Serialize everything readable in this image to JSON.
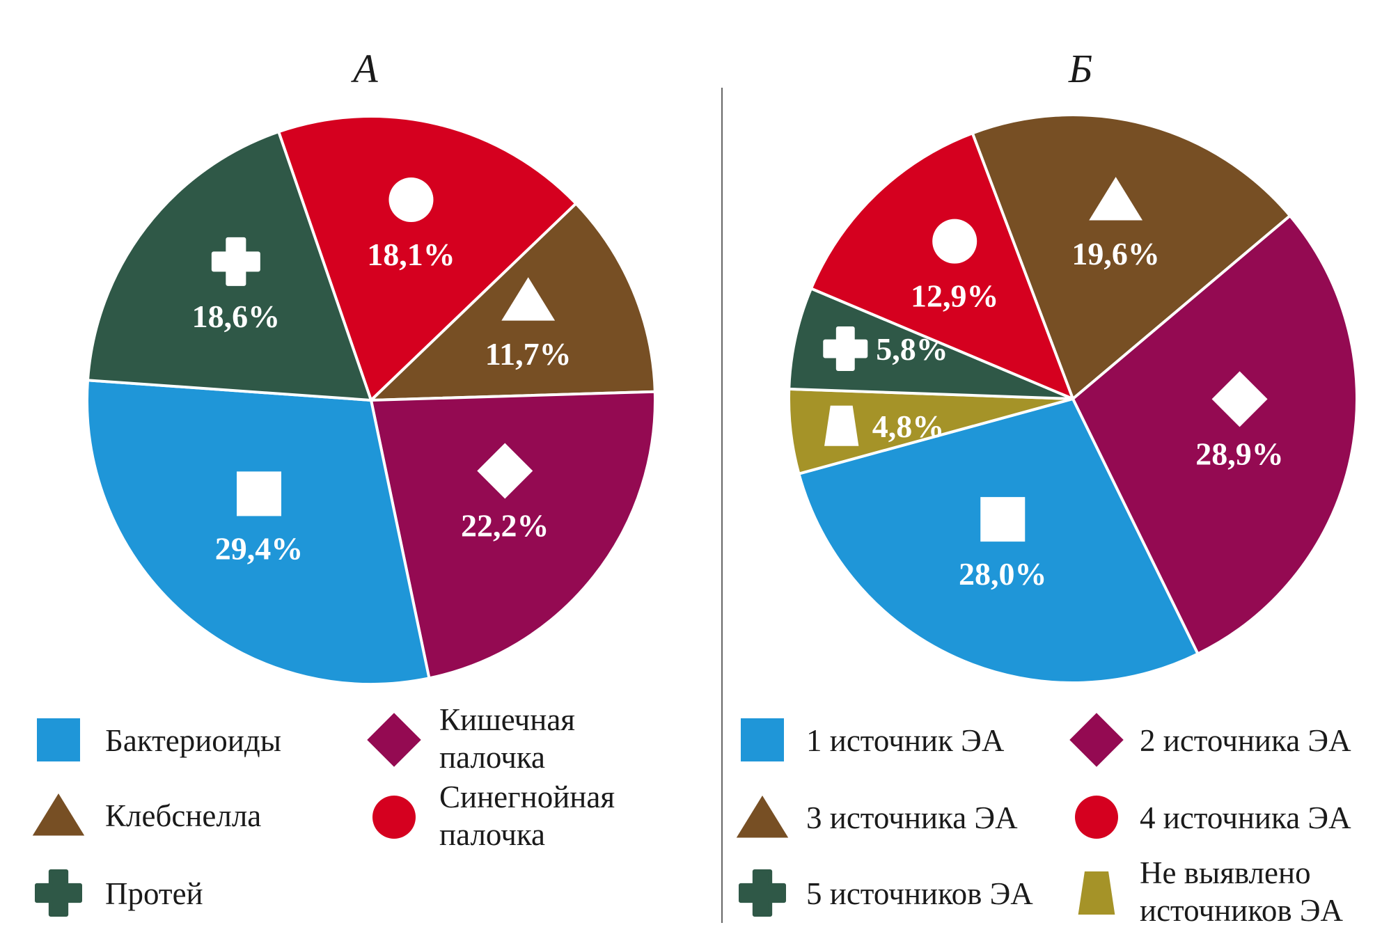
{
  "chart_data": [
    {
      "type": "pie",
      "title": "А",
      "slices": [
        {
          "label": "Синегнойная палочка",
          "legend_lines": [
            "Синегнойная",
            "палочка"
          ],
          "value": 18.1,
          "value_label": "18,1%",
          "color": "#d5001f",
          "icon": "circle"
        },
        {
          "label": "Клебснелла",
          "legend_lines": [
            "Клебснелла"
          ],
          "value": 11.7,
          "value_label": "11,7%",
          "color": "#774f24",
          "icon": "triangle"
        },
        {
          "label": "Кишечная палочка",
          "legend_lines": [
            "Кишечная",
            "палочка"
          ],
          "value": 22.2,
          "value_label": "22,2%",
          "color": "#940a52",
          "icon": "diamond"
        },
        {
          "label": "Бактериоиды",
          "legend_lines": [
            "Бактериоиды"
          ],
          "value": 29.4,
          "value_label": "29,4%",
          "color": "#1f96d8",
          "icon": "square"
        },
        {
          "label": "Протей",
          "legend_lines": [
            "Протей"
          ],
          "value": 18.6,
          "value_label": "18,6%",
          "color": "#2f5847",
          "icon": "cross"
        }
      ],
      "legend_order": [
        3,
        2,
        1,
        0,
        4
      ]
    },
    {
      "type": "pie",
      "title": "Б",
      "slices": [
        {
          "label": "3 источника ЭА",
          "legend_lines": [
            "3 источника ЭА"
          ],
          "value": 19.6,
          "value_label": "19,6%",
          "color": "#774f24",
          "icon": "triangle"
        },
        {
          "label": "2 источника ЭА",
          "legend_lines": [
            "2 источника ЭА"
          ],
          "value": 28.9,
          "value_label": "28,9%",
          "color": "#940a52",
          "icon": "diamond"
        },
        {
          "label": "1 источник ЭА",
          "legend_lines": [
            "1 источник ЭА"
          ],
          "value": 28.0,
          "value_label": "28,0%",
          "color": "#1f96d8",
          "icon": "square"
        },
        {
          "label": "Не выявлено источников ЭА",
          "legend_lines": [
            "Не выявлено",
            "источников ЭА"
          ],
          "value": 4.8,
          "value_label": "4,8%",
          "color": "#a59328",
          "icon": "trapezoid"
        },
        {
          "label": "5 источников ЭА",
          "legend_lines": [
            "5 источников ЭА"
          ],
          "value": 5.8,
          "value_label": "5,8%",
          "color": "#2f5847",
          "icon": "cross"
        },
        {
          "label": "4 источника ЭА",
          "legend_lines": [
            "4 источника ЭА"
          ],
          "value": 12.9,
          "value_label": "12,9%",
          "color": "#d5001f",
          "icon": "circle"
        }
      ],
      "legend_order": [
        2,
        1,
        0,
        5,
        4,
        3
      ]
    }
  ]
}
